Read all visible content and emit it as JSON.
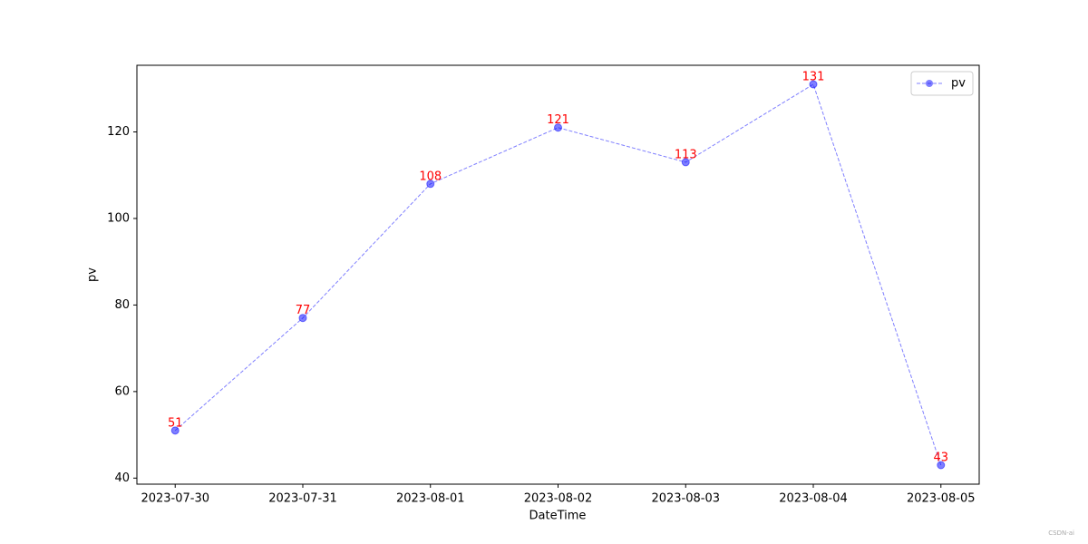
{
  "chart_data": {
    "type": "line",
    "xlabel": "DateTime",
    "ylabel": "pv",
    "categories": [
      "2023-07-30",
      "2023-07-31",
      "2023-08-01",
      "2023-08-02",
      "2023-08-03",
      "2023-08-04",
      "2023-08-05"
    ],
    "series": [
      {
        "name": "pv",
        "color": "#0000ff",
        "values": [
          51,
          77,
          108,
          121,
          113,
          131,
          43
        ]
      }
    ],
    "data_label_color": "#ff0000",
    "ylim": [
      38.6,
      135.4
    ],
    "yticks": [
      40,
      60,
      80,
      100,
      120
    ],
    "grid": false,
    "legend": "upper right",
    "watermark": "CSDN-ai"
  }
}
